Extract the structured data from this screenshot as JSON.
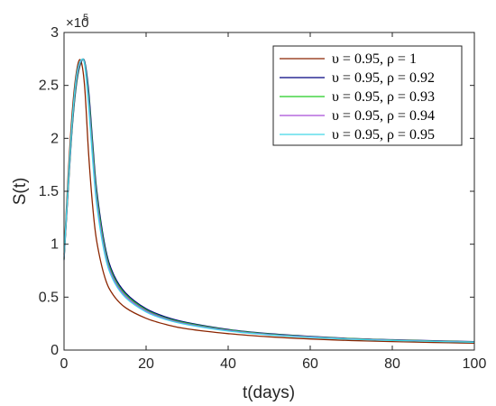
{
  "chart_data": {
    "type": "line",
    "xlabel": "t(days)",
    "ylabel": "S(t)",
    "xlim": [
      0,
      100
    ],
    "ylim": [
      0,
      300000
    ],
    "xticks": [
      0,
      20,
      40,
      60,
      80,
      100
    ],
    "xtick_labels": [
      "0",
      "20",
      "40",
      "60",
      "80",
      "100"
    ],
    "yticks": [
      0,
      50000,
      100000,
      150000,
      200000,
      250000,
      300000
    ],
    "ytick_labels": [
      "0",
      "0.5",
      "1",
      "1.5",
      "2",
      "2.5",
      "3"
    ],
    "y_exponent_label": "×10",
    "y_exponent_power": "5",
    "grid": false,
    "legend_position": "top-right",
    "series": [
      {
        "name": "υ = 0.95, ρ = 1",
        "color": "#8B2500",
        "x": [
          0,
          1,
          2,
          3,
          4,
          5,
          6,
          7,
          8,
          10,
          12,
          15,
          20,
          25,
          30,
          40,
          50,
          60,
          70,
          80,
          90,
          100
        ],
        "y": [
          90000,
          165000,
          225000,
          262000,
          274000,
          250000,
          185000,
          135000,
          102000,
          68000,
          52000,
          40000,
          30000,
          24000,
          20000,
          15500,
          12500,
          10500,
          9000,
          8000,
          7200,
          6500
        ]
      },
      {
        "name": "υ = 0.95, ρ = 0.92",
        "color": "#00007F",
        "x": [
          0,
          1,
          2,
          3,
          4,
          5,
          6,
          7,
          8,
          10,
          12,
          15,
          20,
          25,
          30,
          40,
          50,
          60,
          70,
          80,
          90,
          100
        ],
        "y": [
          85000,
          150000,
          210000,
          250000,
          270000,
          273000,
          245000,
          195000,
          150000,
          98000,
          72000,
          54000,
          39000,
          31000,
          26000,
          19500,
          15500,
          13000,
          11000,
          9800,
          8800,
          8000
        ]
      },
      {
        "name": "υ = 0.95, ρ = 0.93",
        "color": "#22CC22",
        "x": [
          0,
          1,
          2,
          3,
          4,
          5,
          6,
          7,
          8,
          10,
          12,
          15,
          20,
          25,
          30,
          40,
          50,
          60,
          70,
          80,
          90,
          100
        ],
        "y": [
          86000,
          152000,
          212000,
          252000,
          271000,
          272000,
          240000,
          190000,
          146000,
          95000,
          70000,
          52500,
          38000,
          30000,
          25300,
          19000,
          15100,
          12700,
          10800,
          9600,
          8600,
          7800
        ]
      },
      {
        "name": "υ = 0.95, ρ = 0.94",
        "color": "#A64CD8",
        "x": [
          0,
          1,
          2,
          3,
          4,
          5,
          6,
          7,
          8,
          10,
          12,
          15,
          20,
          25,
          30,
          40,
          50,
          60,
          70,
          80,
          90,
          100
        ],
        "y": [
          87000,
          155000,
          215000,
          255000,
          272000,
          271000,
          235000,
          184000,
          141000,
          92000,
          68000,
          51000,
          37000,
          29300,
          24600,
          18500,
          14700,
          12400,
          10500,
          9400,
          8400,
          7600
        ]
      },
      {
        "name": "υ = 0.95, ρ = 0.95",
        "color": "#40D8E8",
        "x": [
          0,
          1,
          2,
          3,
          4,
          5,
          6,
          7,
          8,
          10,
          12,
          15,
          20,
          25,
          30,
          40,
          50,
          60,
          70,
          80,
          90,
          100
        ],
        "y": [
          88000,
          158000,
          218000,
          258000,
          273000,
          270000,
          230000,
          178000,
          136000,
          89000,
          66000,
          49500,
          36000,
          28600,
          24000,
          18000,
          14300,
          12000,
          10200,
          9100,
          8200,
          7400
        ]
      }
    ]
  }
}
